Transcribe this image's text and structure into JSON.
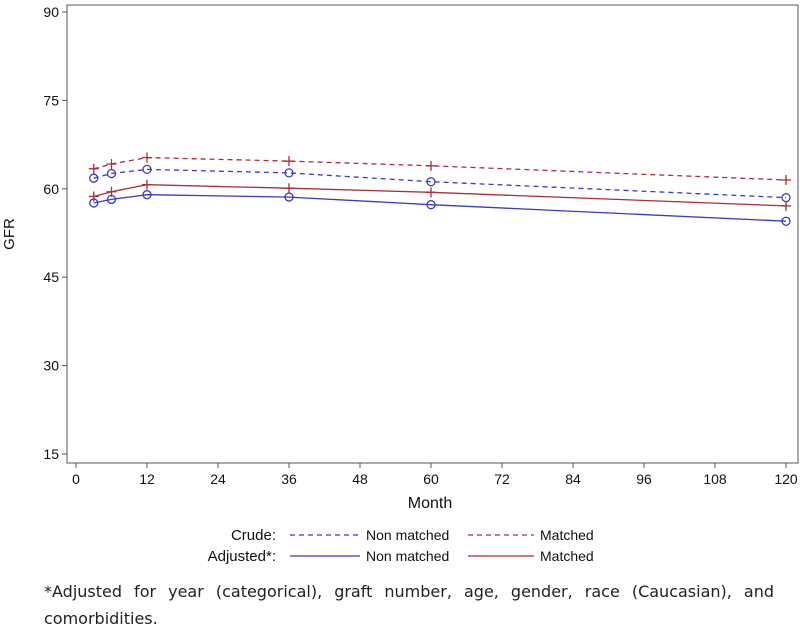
{
  "chart_data": {
    "type": "line",
    "ylabel": "GFR",
    "xlabel": "Month",
    "xlim": [
      0,
      120
    ],
    "ylim": [
      15,
      90
    ],
    "xticks": [
      0,
      12,
      24,
      36,
      48,
      60,
      72,
      84,
      96,
      108,
      120
    ],
    "yticks": [
      15,
      30,
      45,
      60,
      75,
      90
    ],
    "grid": false,
    "x": [
      3,
      6,
      12,
      36,
      60,
      120
    ],
    "series": [
      {
        "name": "Crude Non matched",
        "group": "Crude",
        "style": "dashed",
        "color": "#3a3ac8",
        "marker": "circle",
        "values": [
          61.8,
          62.6,
          63.3,
          62.7,
          61.2,
          58.5
        ]
      },
      {
        "name": "Crude Matched",
        "group": "Crude",
        "style": "dashed",
        "color": "#b02a38",
        "marker": "plus",
        "values": [
          63.4,
          64.2,
          65.3,
          64.7,
          63.9,
          61.5
        ]
      },
      {
        "name": "Adjusted Non matched",
        "group": "Adjusted",
        "style": "solid",
        "color": "#3a3ac8",
        "marker": "circle",
        "values": [
          57.6,
          58.2,
          59.0,
          58.6,
          57.3,
          54.5
        ]
      },
      {
        "name": "Adjusted Matched",
        "group": "Adjusted",
        "style": "solid",
        "color": "#b02a38",
        "marker": "plus",
        "values": [
          58.7,
          59.5,
          60.7,
          60.1,
          59.4,
          57.1
        ]
      }
    ],
    "legend": {
      "placement": "bottom",
      "crude_label": "Crude:",
      "adjusted_label": "Adjusted*:",
      "non_matched_label": "Non matched",
      "matched_label": "Matched"
    }
  },
  "footnote": "*Adjusted for year (categorical), graft number, age, gender, race (Caucasian), and comorbidities."
}
